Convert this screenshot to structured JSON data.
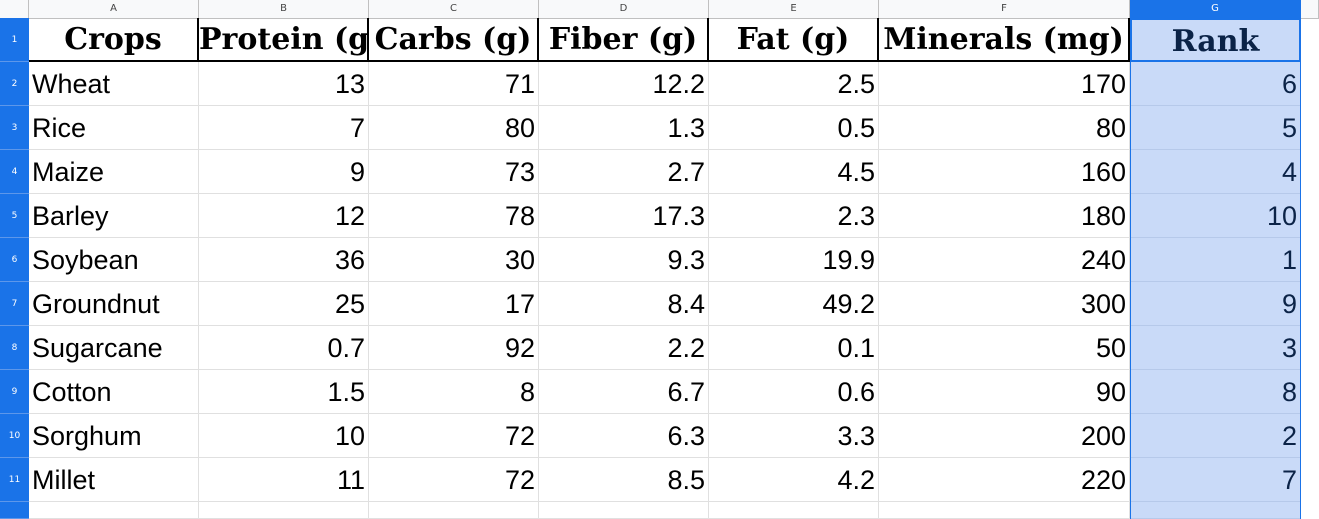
{
  "sheet": {
    "column_letters": [
      "A",
      "B",
      "C",
      "D",
      "E",
      "F",
      "G"
    ],
    "row_numbers": [
      "1",
      "2",
      "3",
      "4",
      "5",
      "6",
      "7",
      "8",
      "9",
      "10",
      "11"
    ],
    "headers": [
      "Crops",
      "Protein (g)",
      "Carbs (g)",
      "Fiber (g)",
      "Fat (g)",
      "Minerals (mg)",
      "Rank"
    ],
    "rows": [
      [
        "Wheat",
        "13",
        "71",
        "12.2",
        "2.5",
        "170",
        "6"
      ],
      [
        "Rice",
        "7",
        "80",
        "1.3",
        "0.5",
        "80",
        "5"
      ],
      [
        "Maize",
        "9",
        "73",
        "2.7",
        "4.5",
        "160",
        "4"
      ],
      [
        "Barley",
        "12",
        "78",
        "17.3",
        "2.3",
        "180",
        "10"
      ],
      [
        "Soybean",
        "36",
        "30",
        "9.3",
        "19.9",
        "240",
        "1"
      ],
      [
        "Groundnut",
        "25",
        "17",
        "8.4",
        "49.2",
        "300",
        "9"
      ],
      [
        "Sugarcane",
        "0.7",
        "92",
        "2.2",
        "0.1",
        "50",
        "3"
      ],
      [
        "Cotton",
        "1.5",
        "8",
        "6.7",
        "0.6",
        "90",
        "8"
      ],
      [
        "Sorghum",
        "10",
        "72",
        "6.3",
        "3.3",
        "200",
        "2"
      ],
      [
        "Millet",
        "11",
        "72",
        "8.5",
        "4.2",
        "220",
        "7"
      ]
    ],
    "selected_column": "G",
    "colors": {
      "selection_accent": "#1a73e8",
      "selection_fill": "#c9daf8"
    }
  }
}
